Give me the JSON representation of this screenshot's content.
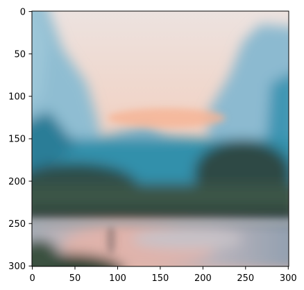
{
  "image": {
    "description_type": "blurred landscape photo displayed as an image plot with pixel-index axes",
    "x_axis": {
      "range": [
        0,
        301
      ],
      "ticks": [
        0,
        50,
        100,
        150,
        200,
        250,
        300
      ],
      "tick_labels": [
        "0",
        "50",
        "100",
        "150",
        "200",
        "250",
        "300"
      ]
    },
    "y_axis": {
      "range": [
        0,
        301
      ],
      "inverted": true,
      "ticks": [
        0,
        50,
        100,
        150,
        200,
        250,
        300
      ],
      "tick_labels": [
        "0",
        "50",
        "100",
        "150",
        "200",
        "250",
        "300"
      ]
    },
    "colors": {
      "sky_top": "#ece6e4",
      "sky_glow": "#f4b9a0",
      "mountain_blue": "#8fbdd2",
      "lake_teal": "#2f8aa3",
      "treeline_dark": "#2f4a43",
      "grass_green": "#3f5a45",
      "water_pink": "#dcb4ae",
      "water_blue_gray": "#9aa8b6",
      "foreground_dark": "#2a3d2e"
    }
  }
}
